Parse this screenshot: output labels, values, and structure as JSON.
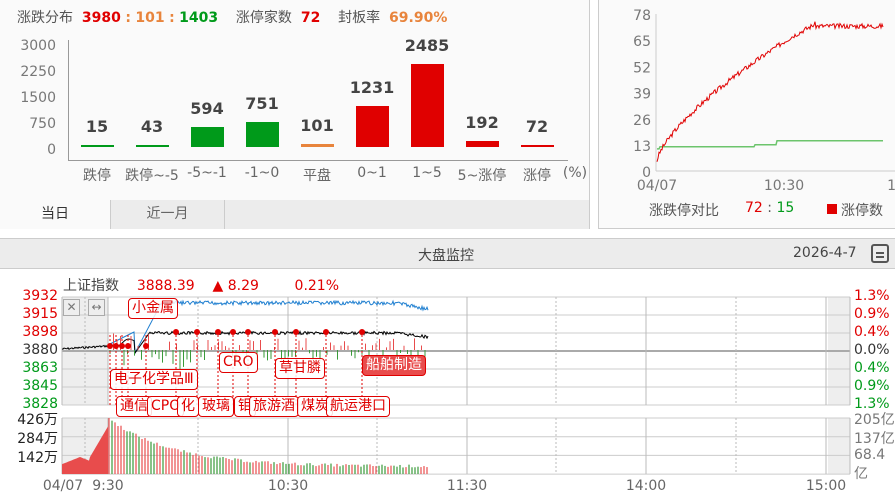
{
  "distribution": {
    "title": "涨跌分布",
    "up": "3980",
    "flat": "101",
    "down": "1403",
    "sep": ":",
    "limit_up_label": "涨停家数",
    "limit_up": "72",
    "seal_label": "封板率",
    "seal_rate": "69.90%",
    "unit": "(%)",
    "chart_data": {
      "type": "bar",
      "categories": [
        "跌停",
        "跌停~-5",
        "-5~-1",
        "-1~0",
        "平盘",
        "0~1",
        "1~5",
        "5~涨停",
        "涨停"
      ],
      "values": [
        15,
        43,
        594,
        751,
        101,
        1231,
        2485,
        192,
        72
      ],
      "colors": [
        "#009a1a",
        "#009a1a",
        "#009a1a",
        "#009a1a",
        "#e8843c",
        "#e00000",
        "#e00000",
        "#e00000",
        "#e00000"
      ],
      "yticks": [
        "3000",
        "2250",
        "1500",
        "750",
        "0"
      ],
      "ylim": [
        0,
        3000
      ]
    },
    "tabs": [
      {
        "label": "当日",
        "active": true
      },
      {
        "label": "近一月",
        "active": false
      }
    ]
  },
  "limit_compare": {
    "yticks": [
      "78",
      "65",
      "52",
      "39",
      "26",
      "13",
      "0"
    ],
    "xticks": [
      "04/07",
      "10:30",
      "1"
    ],
    "label": "涨跌停对比",
    "up": "72",
    "sep": ":",
    "down": "15",
    "legend": "涨停数",
    "colors": {
      "up": "#e00000",
      "down": "#6cc46c"
    },
    "chart_data": {
      "type": "line",
      "ylim": [
        0,
        78
      ],
      "series": [
        {
          "name": "涨停数",
          "color": "#e00000",
          "end": 72
        },
        {
          "color": "#6cc46c",
          "end": 15
        }
      ]
    }
  },
  "monitor": {
    "title": "大盘监控",
    "date": "2026-4-7",
    "index_name": "上证指数",
    "price": "3888.39",
    "change_arrow": "▲",
    "change": "8.29",
    "pct": "0.21%",
    "yticks_left": [
      "3932",
      "3915",
      "3898",
      "3880",
      "3863",
      "3845",
      "3828"
    ],
    "yticks_right": [
      "1.3%",
      "0.9%",
      "0.4%",
      "0.0%",
      "0.4%",
      "0.9%",
      "1.3%"
    ],
    "vol_left": [
      "426万",
      "284万",
      "142万"
    ],
    "vol_right": [
      "205亿",
      "137亿",
      "68.4亿"
    ],
    "xticks": [
      "04/07",
      "9:30",
      "10:30",
      "11:30",
      "14:00",
      "15:00"
    ],
    "tags": [
      "小金属",
      "电子化学品Ⅲ",
      "通信",
      "CPO",
      "化",
      "玻璃",
      "钼",
      "旅游酒",
      "煤炭",
      "航运港口",
      "CRO",
      "草甘膦",
      "船舶制造"
    ]
  }
}
